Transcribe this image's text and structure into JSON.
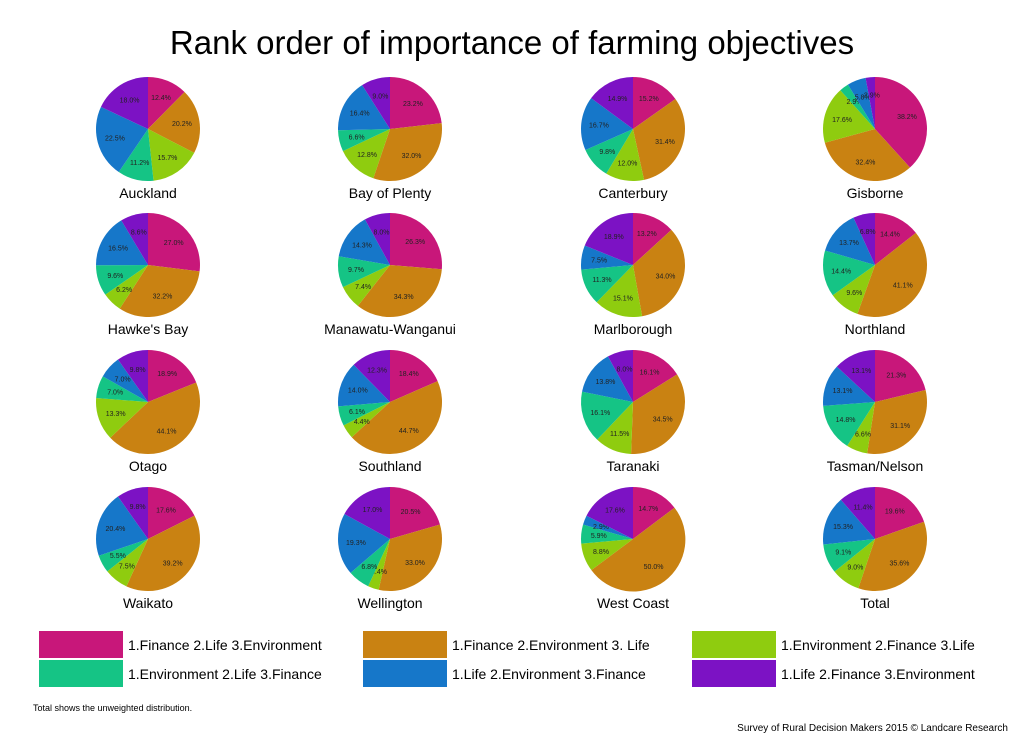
{
  "chart_data": {
    "type": "pie",
    "title": "Rank order of importance of farming objectives",
    "categories": [
      "1.Finance 2.Life 3.Environment",
      "1.Finance 2.Environment 3. Life",
      "1.Environment 2.Finance 3.Life",
      "1.Environment 2.Life 3.Finance",
      "1.Life 2.Environment 3.Finance",
      "1.Life 2.Finance 3.Environment"
    ],
    "colors": [
      "#c8177a",
      "#c98212",
      "#8fcc0f",
      "#15c485",
      "#1677c9",
      "#7c12c4"
    ],
    "pies": [
      {
        "name": "Auckland",
        "values": [
          12.4,
          20.2,
          15.7,
          11.2,
          22.5,
          18.0
        ]
      },
      {
        "name": "Bay of Plenty",
        "values": [
          23.2,
          32.0,
          12.8,
          6.6,
          16.4,
          9.0
        ]
      },
      {
        "name": "Canterbury",
        "values": [
          15.2,
          31.4,
          12.0,
          9.8,
          16.7,
          14.9
        ]
      },
      {
        "name": "Gisborne",
        "values": [
          38.2,
          32.4,
          17.6,
          2.9,
          5.8,
          2.9
        ]
      },
      {
        "name": "Hawke's Bay",
        "values": [
          27.0,
          32.2,
          6.2,
          9.6,
          16.5,
          8.6
        ]
      },
      {
        "name": "Manawatu-Wanganui",
        "values": [
          26.3,
          34.3,
          7.4,
          9.7,
          14.3,
          8.0
        ]
      },
      {
        "name": "Marlborough",
        "values": [
          13.2,
          34.0,
          15.1,
          11.3,
          7.5,
          18.9
        ]
      },
      {
        "name": "Northland",
        "values": [
          14.4,
          41.1,
          9.6,
          14.4,
          13.7,
          6.8
        ]
      },
      {
        "name": "Otago",
        "values": [
          18.9,
          44.1,
          13.3,
          7.0,
          7.0,
          9.8
        ]
      },
      {
        "name": "Southland",
        "values": [
          18.4,
          44.7,
          4.4,
          6.1,
          14.0,
          12.3
        ]
      },
      {
        "name": "Taranaki",
        "values": [
          16.1,
          34.5,
          11.5,
          16.1,
          13.8,
          8.0
        ]
      },
      {
        "name": "Tasman/Nelson",
        "values": [
          21.3,
          31.1,
          6.6,
          14.8,
          13.1,
          13.1
        ]
      },
      {
        "name": "Waikato",
        "values": [
          17.6,
          39.2,
          7.5,
          5.5,
          20.4,
          9.8
        ]
      },
      {
        "name": "Wellington",
        "values": [
          20.5,
          33.0,
          3.4,
          6.8,
          19.3,
          17.0
        ]
      },
      {
        "name": "West Coast",
        "values": [
          14.7,
          50.0,
          8.8,
          5.9,
          2.9,
          17.6
        ]
      },
      {
        "name": "Total",
        "values": [
          19.6,
          35.6,
          9.0,
          9.1,
          15.3,
          11.4
        ]
      }
    ]
  },
  "footnote": "Total shows the unweighted distribution.",
  "credit": "Survey of Rural Decision Makers 2015 © Landcare Research"
}
